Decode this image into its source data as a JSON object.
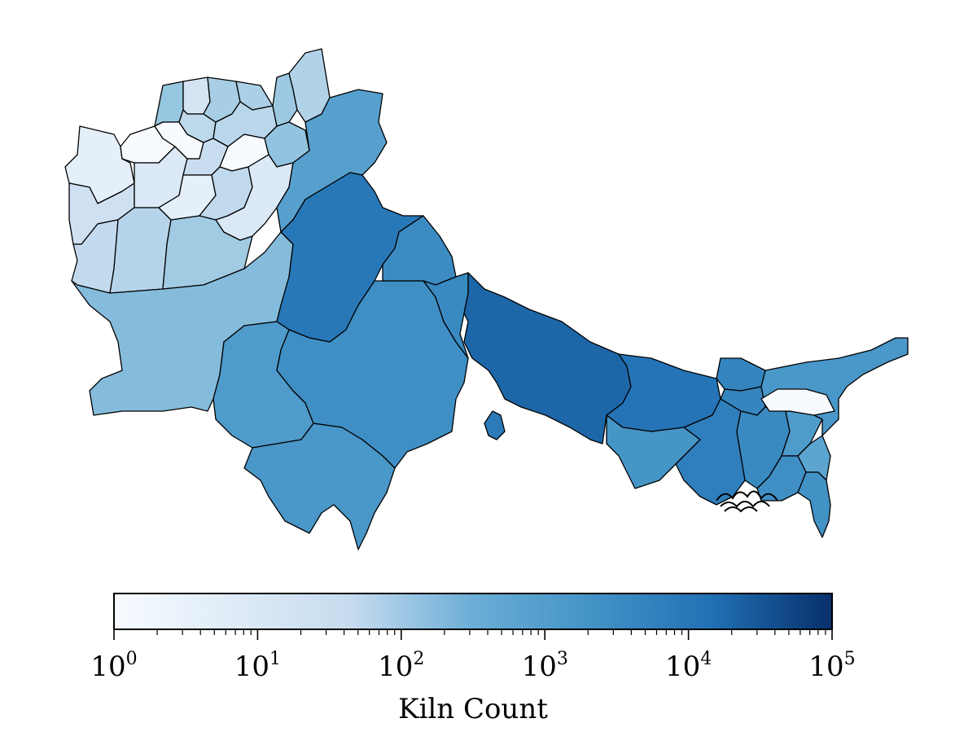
{
  "colors": {
    "stops": [
      "#f7fbff",
      "#c6dbef",
      "#9ecae1",
      "#6baed6",
      "#4292c6",
      "#2171b5",
      "#08306b"
    ],
    "outline": "#000000"
  },
  "colorbar": {
    "label": "Kiln Count",
    "scale": "log",
    "range": [
      1,
      100000
    ],
    "ticks": [
      {
        "base": "10",
        "exp": "0",
        "value": 1
      },
      {
        "base": "10",
        "exp": "1",
        "value": 10
      },
      {
        "base": "10",
        "exp": "2",
        "value": 100
      },
      {
        "base": "10",
        "exp": "3",
        "value": 1000
      },
      {
        "base": "10",
        "exp": "4",
        "value": 10000
      },
      {
        "base": "10",
        "exp": "5",
        "value": 100000
      }
    ]
  },
  "regions": [
    {
      "id": "afghanistan-district-1",
      "value": 2
    },
    {
      "id": "afghanistan-district-2",
      "value": 5
    },
    {
      "id": "afghanistan-district-3",
      "value": 8
    },
    {
      "id": "afghanistan-district-4",
      "value": 15
    },
    {
      "id": "afghanistan-district-5",
      "value": 40
    },
    {
      "id": "afghanistan-district-6",
      "value": 1
    },
    {
      "id": "afghanistan-district-7",
      "value": 3
    },
    {
      "id": "afghanistan-district-8",
      "value": 60
    },
    {
      "id": "afghanistan-district-9",
      "value": 1
    },
    {
      "id": "afghanistan-district-10",
      "value": 4
    },
    {
      "id": "afghanistan-district-11",
      "value": 10
    },
    {
      "id": "afghanistan-district-12",
      "value": 30
    },
    {
      "id": "afghanistan-district-13",
      "value": 6
    },
    {
      "id": "afghanistan-district-14",
      "value": 2
    },
    {
      "id": "afghanistan-district-15",
      "value": 25
    },
    {
      "id": "afghanistan-district-16",
      "value": 12
    },
    {
      "id": "afghanistan-district-17",
      "value": 1
    },
    {
      "id": "afghanistan-district-18",
      "value": 50
    },
    {
      "id": "afghanistan-district-19",
      "value": 9
    },
    {
      "id": "afghanistan-district-20",
      "value": 70
    },
    {
      "id": "afghanistan-district-21",
      "value": 18
    },
    {
      "id": "afghanistan-district-22",
      "value": 3
    },
    {
      "id": "balochistan",
      "value": 120
    },
    {
      "id": "khyber-pakhtunkhwa",
      "value": 800
    },
    {
      "id": "punjab-pakistan",
      "value": 10000
    },
    {
      "id": "sindh",
      "value": 1200
    },
    {
      "id": "rajasthan",
      "value": 2500
    },
    {
      "id": "punjab-haryana",
      "value": 3000
    },
    {
      "id": "delhi-haryana",
      "value": 3500
    },
    {
      "id": "gujarat",
      "value": 1500
    },
    {
      "id": "uttar-pradesh",
      "value": 20000
    },
    {
      "id": "madhya-pradesh-pocket",
      "value": 8000
    },
    {
      "id": "bihar",
      "value": 12000
    },
    {
      "id": "jharkhand",
      "value": 1800
    },
    {
      "id": "nepal-terai-east",
      "value": 5000
    },
    {
      "id": "bangladesh-north",
      "value": 4500
    },
    {
      "id": "west-bengal",
      "value": 6500
    },
    {
      "id": "bangladesh-central",
      "value": 3500
    },
    {
      "id": "bangladesh-east",
      "value": 1200
    },
    {
      "id": "bangladesh-southeast",
      "value": 2500
    },
    {
      "id": "assam",
      "value": 1500
    },
    {
      "id": "meghalaya",
      "value": 1
    },
    {
      "id": "tripura-mizoram",
      "value": 600
    },
    {
      "id": "chittagong",
      "value": 2200
    }
  ]
}
